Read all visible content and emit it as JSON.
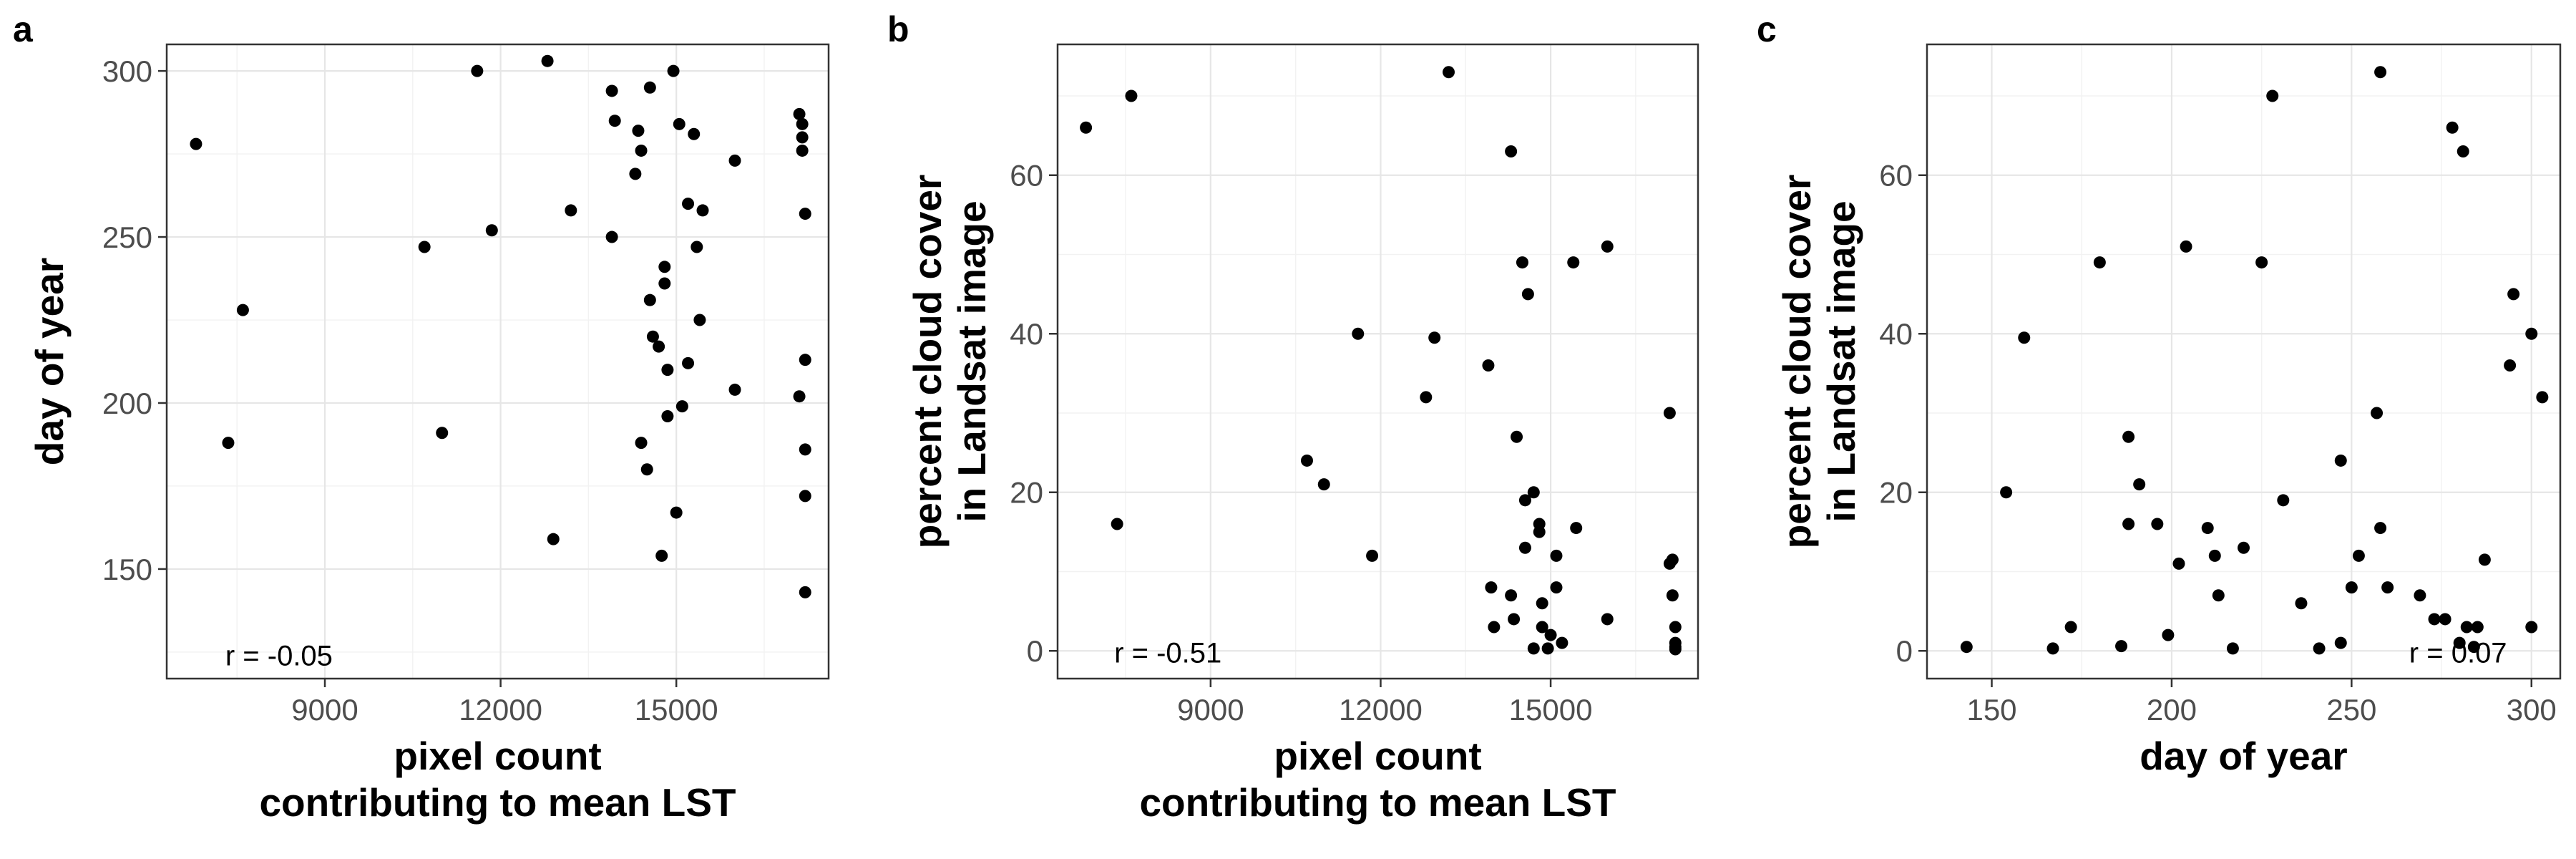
{
  "chart_data": [
    {
      "panel": "a",
      "type": "scatter",
      "xlabel": [
        "pixel count",
        "contributing to mean LST"
      ],
      "ylabel": [
        "day of year"
      ],
      "xlim": [
        6300,
        17600
      ],
      "ylim": [
        117,
        308
      ],
      "xticks": [
        9000,
        12000,
        15000
      ],
      "yticks": [
        150,
        200,
        250,
        300
      ],
      "annotation": "r = -0.05",
      "annotation_pos": [
        7300,
        124
      ],
      "points": [
        [
          6800,
          278
        ],
        [
          7350,
          188
        ],
        [
          7600,
          228
        ],
        [
          10700,
          247
        ],
        [
          11000,
          191
        ],
        [
          11600,
          300
        ],
        [
          11850,
          252
        ],
        [
          12800,
          303
        ],
        [
          12900,
          159
        ],
        [
          13200,
          258
        ],
        [
          13900,
          294
        ],
        [
          13950,
          285
        ],
        [
          13900,
          250
        ],
        [
          14300,
          269
        ],
        [
          14350,
          282
        ],
        [
          14400,
          276
        ],
        [
          14400,
          188
        ],
        [
          14500,
          180
        ],
        [
          14550,
          295
        ],
        [
          14550,
          231
        ],
        [
          14600,
          220
        ],
        [
          14700,
          217
        ],
        [
          14750,
          154
        ],
        [
          14800,
          241
        ],
        [
          14800,
          236
        ],
        [
          14850,
          196
        ],
        [
          14850,
          210
        ],
        [
          14950,
          300
        ],
        [
          15000,
          167
        ],
        [
          15050,
          284
        ],
        [
          15100,
          199
        ],
        [
          15200,
          260
        ],
        [
          15200,
          212
        ],
        [
          15300,
          281
        ],
        [
          15350,
          247
        ],
        [
          15400,
          225
        ],
        [
          15450,
          258
        ],
        [
          16000,
          273
        ],
        [
          16000,
          204
        ],
        [
          17100,
          287
        ],
        [
          17100,
          202
        ],
        [
          17150,
          284
        ],
        [
          17150,
          280
        ],
        [
          17150,
          276
        ],
        [
          17200,
          257
        ],
        [
          17200,
          213
        ],
        [
          17200,
          186
        ],
        [
          17200,
          172
        ],
        [
          17200,
          143
        ]
      ]
    },
    {
      "panel": "b",
      "type": "scatter",
      "xlabel": [
        "pixel count",
        "contributing to mean LST"
      ],
      "ylabel": [
        "percent cloud cover",
        "in Landsat image"
      ],
      "xlim": [
        6300,
        17600
      ],
      "ylim": [
        -3.5,
        76.5
      ],
      "xticks": [
        9000,
        12000,
        15000
      ],
      "yticks": [
        0,
        20,
        40,
        60
      ],
      "annotation": "r = -0.51",
      "annotation_pos": [
        7300,
        -0.2
      ],
      "points": [
        [
          6800,
          66
        ],
        [
          7600,
          70
        ],
        [
          7350,
          16
        ],
        [
          10700,
          24
        ],
        [
          11000,
          21
        ],
        [
          11600,
          40
        ],
        [
          11850,
          12
        ],
        [
          12800,
          32
        ],
        [
          12950,
          39.5
        ],
        [
          13200,
          73
        ],
        [
          13900,
          36
        ],
        [
          13950,
          8
        ],
        [
          14000,
          3
        ],
        [
          14300,
          63
        ],
        [
          14300,
          7
        ],
        [
          14350,
          4
        ],
        [
          14400,
          27
        ],
        [
          14500,
          49
        ],
        [
          14550,
          13
        ],
        [
          14550,
          19
        ],
        [
          14600,
          45
        ],
        [
          14700,
          20
        ],
        [
          14700,
          0.3
        ],
        [
          14800,
          16
        ],
        [
          14800,
          15
        ],
        [
          14850,
          6
        ],
        [
          14850,
          3
        ],
        [
          14950,
          0.3
        ],
        [
          15000,
          2
        ],
        [
          15100,
          8
        ],
        [
          15100,
          12
        ],
        [
          15200,
          1
        ],
        [
          15400,
          49
        ],
        [
          15450,
          15.5
        ],
        [
          16000,
          51
        ],
        [
          16000,
          4
        ],
        [
          17100,
          30
        ],
        [
          17100,
          11
        ],
        [
          17150,
          11.5
        ],
        [
          17150,
          7
        ],
        [
          17200,
          3
        ],
        [
          17200,
          1
        ],
        [
          17200,
          0.5
        ],
        [
          17200,
          0.2
        ]
      ]
    },
    {
      "panel": "c",
      "type": "scatter",
      "xlabel": [
        "day of year"
      ],
      "ylabel": [
        "percent cloud cover",
        "in Landsat image"
      ],
      "xlim": [
        132,
        308
      ],
      "ylim": [
        -3.5,
        76.5
      ],
      "xticks": [
        150,
        200,
        250,
        300
      ],
      "yticks": [
        0,
        20,
        40,
        60
      ],
      "annotation": "r = 0.07",
      "annotation_pos": [
        266,
        -0.2
      ],
      "points": [
        [
          143,
          0.5
        ],
        [
          154,
          20
        ],
        [
          159,
          39.5
        ],
        [
          167,
          0.3
        ],
        [
          172,
          3
        ],
        [
          180,
          49
        ],
        [
          186,
          0.6
        ],
        [
          188,
          27
        ],
        [
          188,
          16
        ],
        [
          191,
          21
        ],
        [
          196,
          16
        ],
        [
          199,
          2
        ],
        [
          202,
          11
        ],
        [
          204,
          51
        ],
        [
          210,
          15.5
        ],
        [
          212,
          12
        ],
        [
          213,
          7
        ],
        [
          217,
          0.3
        ],
        [
          220,
          13
        ],
        [
          225,
          49
        ],
        [
          228,
          70
        ],
        [
          231,
          19
        ],
        [
          236,
          6
        ],
        [
          241,
          0.3
        ],
        [
          247,
          24
        ],
        [
          247,
          1
        ],
        [
          250,
          8
        ],
        [
          252,
          12
        ],
        [
          257,
          30
        ],
        [
          258,
          73
        ],
        [
          258,
          15.5
        ],
        [
          260,
          8
        ],
        [
          269,
          7
        ],
        [
          273,
          4
        ],
        [
          276,
          4
        ],
        [
          278,
          66
        ],
        [
          280,
          1
        ],
        [
          281,
          63
        ],
        [
          282,
          3
        ],
        [
          284,
          0.5
        ],
        [
          285,
          3
        ],
        [
          287,
          11.5
        ],
        [
          294,
          36
        ],
        [
          295,
          45
        ],
        [
          300,
          40
        ],
        [
          300,
          3
        ],
        [
          303,
          32
        ]
      ]
    }
  ]
}
